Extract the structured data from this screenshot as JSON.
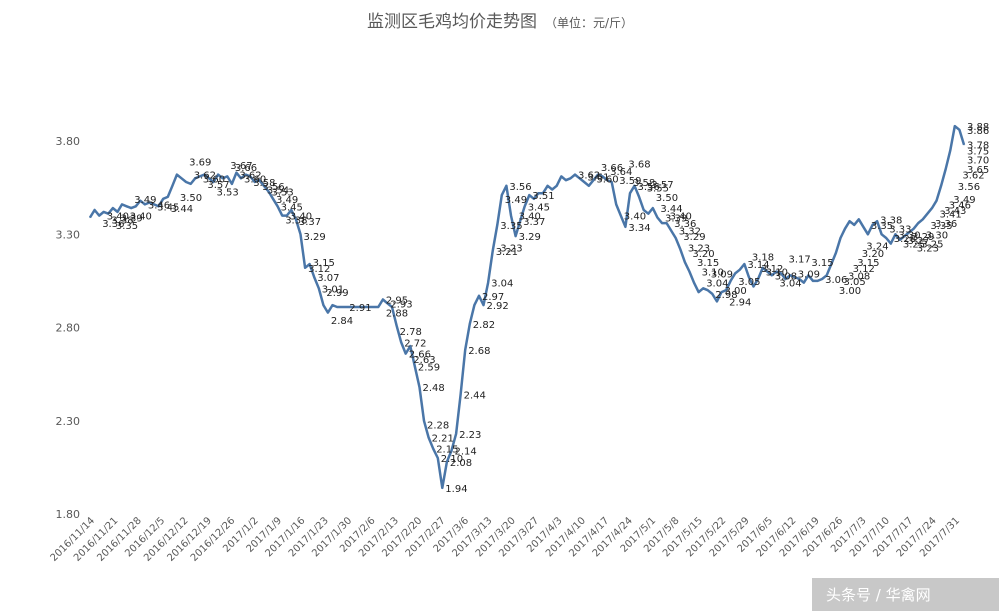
{
  "watermark": "头条号 / 华禽网",
  "chart_data": {
    "type": "line",
    "title": "监测区毛鸡均价走势图",
    "subtitle": "（单位：元/斤）",
    "xlabel": "",
    "ylabel": "",
    "ylim": [
      1.8,
      3.8
    ],
    "yticks": [
      "1.80",
      "2.30",
      "2.80",
      "3.30",
      "3.80"
    ],
    "grid": false,
    "legend": "none",
    "line_color": "#4a76a8",
    "x_tick_labels": [
      "2016/11/14",
      "2016/11/21",
      "2016/11/28",
      "2016/12/5",
      "2016/12/12",
      "2016/12/19",
      "2016/12/26",
      "2017/1/2",
      "2017/1/9",
      "2017/1/16",
      "2017/1/23",
      "2017/1/30",
      "2017/2/6",
      "2017/2/13",
      "2017/2/20",
      "2017/2/27",
      "2017/3/6",
      "2017/3/13",
      "2017/3/20",
      "2017/3/27",
      "2017/4/3",
      "2017/4/10",
      "2017/4/17",
      "2017/4/24",
      "2017/5/1",
      "2017/5/8",
      "2017/5/15",
      "2017/5/22",
      "2017/5/29",
      "2017/6/5",
      "2017/6/12",
      "2017/6/19",
      "2017/6/26",
      "2017/7/3",
      "2017/7/10",
      "2017/7/17",
      "2017/7/24",
      "2017/7/31"
    ],
    "x_start": "2016/11/14",
    "x_end": "2017/8/2",
    "values": [
      3.39,
      3.43,
      3.4,
      3.42,
      3.41,
      3.44,
      3.42,
      3.46,
      3.45,
      3.44,
      3.45,
      3.48,
      3.46,
      3.47,
      3.46,
      3.45,
      3.49,
      3.5,
      3.56,
      3.62,
      3.6,
      3.58,
      3.57,
      3.6,
      3.61,
      3.62,
      3.6,
      3.58,
      3.62,
      3.6,
      3.61,
      3.57,
      3.63,
      3.6,
      3.62,
      3.61,
      3.58,
      3.59,
      3.56,
      3.53,
      3.49,
      3.45,
      3.4,
      3.4,
      3.43,
      3.38,
      3.3,
      3.12,
      3.14,
      3.07,
      3.01,
      2.92,
      2.88,
      2.92,
      2.91,
      2.91,
      2.91,
      2.91,
      2.91,
      2.91,
      2.91,
      2.91,
      2.91,
      2.91,
      2.95,
      2.93,
      2.91,
      2.81,
      2.72,
      2.66,
      2.7,
      2.59,
      2.48,
      2.3,
      2.21,
      2.15,
      2.1,
      1.94,
      2.08,
      2.14,
      2.23,
      2.44,
      2.68,
      2.82,
      2.92,
      2.97,
      2.92,
      3.04,
      3.21,
      3.35,
      3.51,
      3.56,
      3.4,
      3.29,
      3.37,
      3.45,
      3.51,
      3.49,
      3.52,
      3.52,
      3.56,
      3.54,
      3.56,
      3.61,
      3.59,
      3.6,
      3.62,
      3.6,
      3.58,
      3.56,
      3.59,
      3.62,
      3.61,
      3.59,
      3.58,
      3.46,
      3.4,
      3.34,
      3.52,
      3.56,
      3.5,
      3.43,
      3.41,
      3.44,
      3.39,
      3.36,
      3.36,
      3.32,
      3.28,
      3.22,
      3.15,
      3.1,
      3.04,
      2.99,
      3.01,
      3.0,
      2.98,
      2.94,
      2.99,
      3.0,
      3.05,
      3.09,
      3.11,
      3.14,
      3.07,
      3.02,
      3.06,
      3.12,
      3.1,
      3.08,
      3.1,
      3.09,
      3.06,
      3.08,
      3.07,
      3.06,
      3.04,
      3.08,
      3.05,
      3.05,
      3.06,
      3.08,
      3.14,
      3.2,
      3.28,
      3.33,
      3.37,
      3.35,
      3.38,
      3.34,
      3.3,
      3.35,
      3.37,
      3.3,
      3.28,
      3.25,
      3.3,
      3.27,
      3.29,
      3.31,
      3.33,
      3.36,
      3.38,
      3.41,
      3.44,
      3.48,
      3.56,
      3.65,
      3.75,
      3.88,
      3.86,
      3.78
    ],
    "data_labels": [
      {
        "value": "1.94",
        "at": 77
      },
      {
        "value": "2.08",
        "at": 78
      },
      {
        "value": "2.10",
        "at": 76
      },
      {
        "value": "2.14",
        "at": 79
      },
      {
        "value": "2.15",
        "at": 75
      },
      {
        "value": "2.21",
        "at": 74
      },
      {
        "value": "2.23",
        "at": 80
      },
      {
        "value": "2.28",
        "at": 73
      },
      {
        "value": "2.44",
        "at": 81
      },
      {
        "value": "2.48",
        "at": 72
      },
      {
        "value": "2.59",
        "at": 71
      },
      {
        "value": "2.63",
        "at": 70
      },
      {
        "value": "2.66",
        "at": 69
      },
      {
        "value": "2.68",
        "at": 82
      },
      {
        "value": "2.72",
        "at": 68
      },
      {
        "value": "2.78",
        "at": 67
      },
      {
        "value": "2.82",
        "at": 83
      },
      {
        "value": "2.84",
        "at": 52
      },
      {
        "value": "2.88",
        "at": 64
      },
      {
        "value": "2.91",
        "at": 56
      },
      {
        "value": "2.92",
        "at": 86
      },
      {
        "value": "2.93",
        "at": 65
      },
      {
        "value": "2.95",
        "at": 64
      },
      {
        "value": "2.97",
        "at": 85
      },
      {
        "value": "2.99",
        "at": 51
      },
      {
        "value": "3.01",
        "at": 50
      },
      {
        "value": "3.04",
        "at": 87
      },
      {
        "value": "3.07",
        "at": 49
      },
      {
        "value": "3.12",
        "at": 47
      },
      {
        "value": "3.15",
        "at": 48
      },
      {
        "value": "3.21",
        "at": 88
      },
      {
        "value": "3.23",
        "at": 89
      },
      {
        "value": "3.29",
        "at": 93
      },
      {
        "value": "3.35",
        "at": 89
      },
      {
        "value": "3.37",
        "at": 94
      },
      {
        "value": "3.40",
        "at": 93
      },
      {
        "value": "3.45",
        "at": 95
      },
      {
        "value": "3.49",
        "at": 90
      },
      {
        "value": "3.51",
        "at": 96
      },
      {
        "value": "3.56",
        "at": 91
      },
      {
        "value": "3.29",
        "at": 46
      },
      {
        "value": "3.37",
        "at": 45
      },
      {
        "value": "3.38",
        "at": 42
      },
      {
        "value": "3.40",
        "at": 43
      },
      {
        "value": "3.45",
        "at": 41
      },
      {
        "value": "3.49",
        "at": 40
      },
      {
        "value": "3.53",
        "at": 39
      },
      {
        "value": "3.54",
        "at": 38
      },
      {
        "value": "3.56",
        "at": 37
      },
      {
        "value": "3.58",
        "at": 35
      },
      {
        "value": "3.60",
        "at": 33
      },
      {
        "value": "3.62",
        "at": 32
      },
      {
        "value": "3.66",
        "at": 31
      },
      {
        "value": "3.67",
        "at": 30
      },
      {
        "value": "3.53",
        "at": 27
      },
      {
        "value": "3.57",
        "at": 25
      },
      {
        "value": "3.60",
        "at": 24
      },
      {
        "value": "3.62",
        "at": 22
      },
      {
        "value": "3.69",
        "at": 21
      },
      {
        "value": "3.50",
        "at": 19
      },
      {
        "value": "3.44",
        "at": 17
      },
      {
        "value": "3.45",
        "at": 14
      },
      {
        "value": "3.46",
        "at": 12
      },
      {
        "value": "3.49",
        "at": 9
      },
      {
        "value": "3.40",
        "at": 8
      },
      {
        "value": "3.39",
        "at": 6
      },
      {
        "value": "3.35",
        "at": 5
      },
      {
        "value": "3.38",
        "at": 4
      },
      {
        "value": "3.40",
        "at": 3
      },
      {
        "value": "3.36",
        "at": 2
      },
      {
        "value": "3.62",
        "at": 106
      },
      {
        "value": "3.61",
        "at": 108
      },
      {
        "value": "3.60",
        "at": 110
      },
      {
        "value": "3.66",
        "at": 111
      },
      {
        "value": "3.64",
        "at": 113
      },
      {
        "value": "3.59",
        "at": 115
      },
      {
        "value": "3.68",
        "at": 117
      },
      {
        "value": "3.58",
        "at": 118
      },
      {
        "value": "3.56",
        "at": 119
      },
      {
        "value": "3.40",
        "at": 116
      },
      {
        "value": "3.34",
        "at": 117
      },
      {
        "value": "3.55",
        "at": 121
      },
      {
        "value": "3.57",
        "at": 122
      },
      {
        "value": "3.50",
        "at": 123
      },
      {
        "value": "3.44",
        "at": 124
      },
      {
        "value": "3.39",
        "at": 125
      },
      {
        "value": "3.40",
        "at": 126
      },
      {
        "value": "3.36",
        "at": 127
      },
      {
        "value": "3.32",
        "at": 128
      },
      {
        "value": "3.29",
        "at": 129
      },
      {
        "value": "3.23",
        "at": 130
      },
      {
        "value": "3.20",
        "at": 131
      },
      {
        "value": "3.15",
        "at": 132
      },
      {
        "value": "3.10",
        "at": 133
      },
      {
        "value": "3.09",
        "at": 135
      },
      {
        "value": "3.04",
        "at": 134
      },
      {
        "value": "2.98",
        "at": 136
      },
      {
        "value": "3.00",
        "at": 138
      },
      {
        "value": "2.94",
        "at": 139
      },
      {
        "value": "3.05",
        "at": 141
      },
      {
        "value": "3.18",
        "at": 144
      },
      {
        "value": "3.14",
        "at": 143
      },
      {
        "value": "3.12",
        "at": 146
      },
      {
        "value": "3.10",
        "at": 147
      },
      {
        "value": "3.08",
        "at": 149
      },
      {
        "value": "3.04",
        "at": 150
      },
      {
        "value": "3.17",
        "at": 152
      },
      {
        "value": "3.09",
        "at": 154
      },
      {
        "value": "3.15",
        "at": 157
      },
      {
        "value": "3.06",
        "at": 160
      },
      {
        "value": "3.00",
        "at": 163
      },
      {
        "value": "3.05",
        "at": 164
      },
      {
        "value": "3.08",
        "at": 165
      },
      {
        "value": "3.12",
        "at": 166
      },
      {
        "value": "3.15",
        "at": 167
      },
      {
        "value": "3.20",
        "at": 168
      },
      {
        "value": "3.24",
        "at": 169
      },
      {
        "value": "3.35",
        "at": 170
      },
      {
        "value": "3.38",
        "at": 172
      },
      {
        "value": "3.33",
        "at": 174
      },
      {
        "value": "3.28",
        "at": 175
      },
      {
        "value": "3.30",
        "at": 176
      },
      {
        "value": "3.25",
        "at": 177
      },
      {
        "value": "3.27",
        "at": 178
      },
      {
        "value": "3.29",
        "at": 179
      },
      {
        "value": "3.23",
        "at": 180
      },
      {
        "value": "3.25",
        "at": 181
      },
      {
        "value": "3.30",
        "at": 182
      },
      {
        "value": "3.35",
        "at": 183
      },
      {
        "value": "3.36",
        "at": 184
      },
      {
        "value": "3.41",
        "at": 185
      },
      {
        "value": "3.43",
        "at": 186
      },
      {
        "value": "3.46",
        "at": 187
      },
      {
        "value": "3.49",
        "at": 188
      },
      {
        "value": "3.56",
        "at": 189
      },
      {
        "value": "3.62",
        "at": 190
      },
      {
        "value": "3.65",
        "at": 191
      },
      {
        "value": "3.70",
        "at": 192
      },
      {
        "value": "3.75",
        "at": 193
      },
      {
        "value": "3.88",
        "at": 194
      },
      {
        "value": "3.86",
        "at": 195
      },
      {
        "value": "3.78",
        "at": 196
      }
    ]
  }
}
